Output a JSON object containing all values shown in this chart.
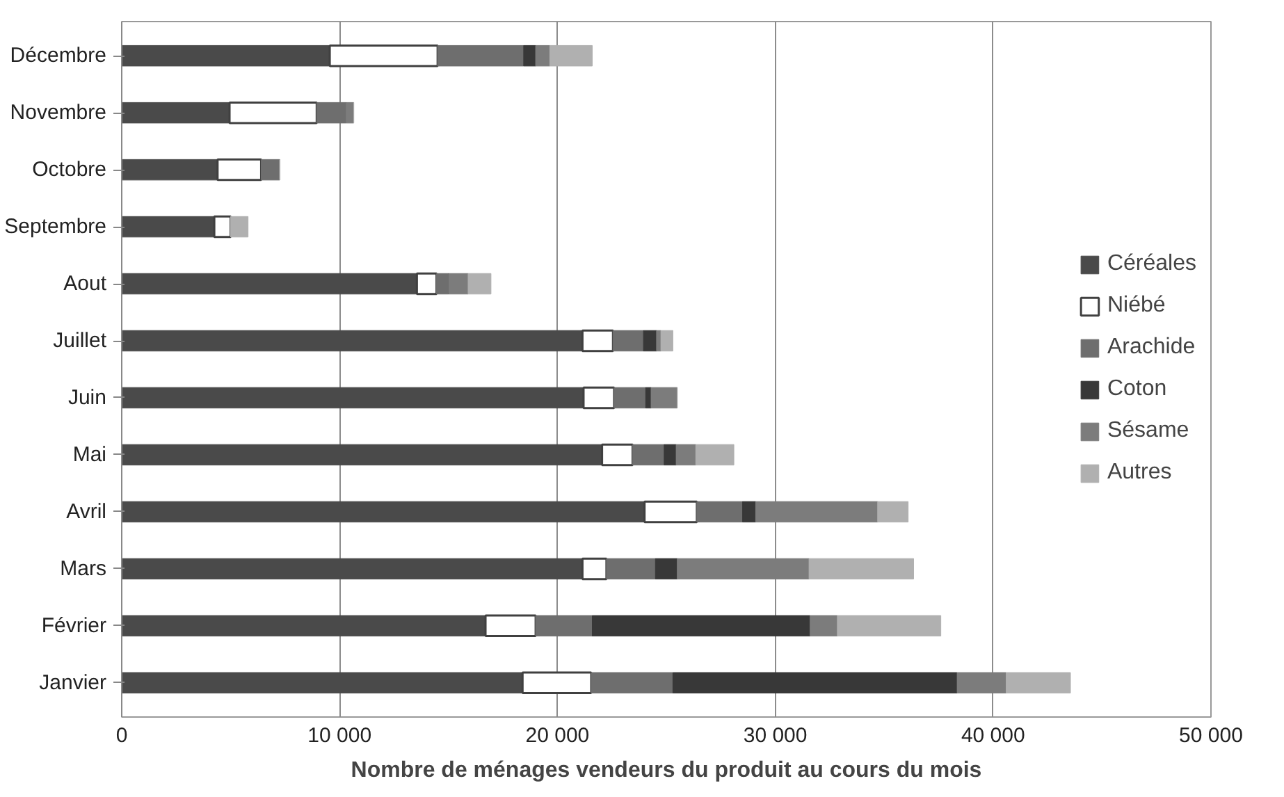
{
  "chart_data": {
    "type": "bar",
    "orientation": "horizontal",
    "stacked": true,
    "xlabel": "Nombre de ménages vendeurs du produit au cours du mois",
    "categories": [
      "Décembre",
      "Novembre",
      "Octobre",
      "Septembre",
      "Aout",
      "Juillet",
      "Juin",
      "Mai",
      "Avril",
      "Mars",
      "Février",
      "Janvier"
    ],
    "series": [
      {
        "name": "Céréales",
        "color": "#4a4a4a",
        "values": [
          9550,
          4950,
          4400,
          4250,
          13550,
          21150,
          21200,
          22050,
          24000,
          21150,
          16700,
          18400
        ]
      },
      {
        "name": "Niébé",
        "color": "#ffffff",
        "values": [
          4950,
          4000,
          2000,
          750,
          900,
          1400,
          1400,
          1400,
          2400,
          1100,
          2300,
          3150
        ]
      },
      {
        "name": "Arachide",
        "color": "#6e6e6e",
        "values": [
          3950,
          1350,
          850,
          0,
          550,
          1400,
          1450,
          1450,
          2100,
          2250,
          2600,
          3750
        ]
      },
      {
        "name": "Coton",
        "color": "#383838",
        "values": [
          550,
          0,
          0,
          0,
          0,
          600,
          250,
          550,
          600,
          1000,
          10000,
          13050
        ]
      },
      {
        "name": "Sésame",
        "color": "#7c7c7c",
        "values": [
          650,
          350,
          0,
          0,
          900,
          200,
          1200,
          900,
          5600,
          6050,
          1250,
          2250
        ]
      },
      {
        "name": "Autres",
        "color": "#b0b0b0",
        "values": [
          1950,
          0,
          0,
          800,
          1050,
          550,
          0,
          1750,
          1400,
          4800,
          4750,
          2950
        ]
      }
    ],
    "xlim": [
      0,
      50000
    ],
    "xticks": [
      0,
      {
        "value": 10000,
        "label": "10 000"
      },
      {
        "value": 20000,
        "label": "20 000"
      },
      {
        "value": 30000,
        "label": "30 000"
      },
      {
        "value": 40000,
        "label": "40 000"
      },
      {
        "value": 50000,
        "label": "50 000"
      }
    ],
    "grid": "x",
    "legend": "right"
  }
}
